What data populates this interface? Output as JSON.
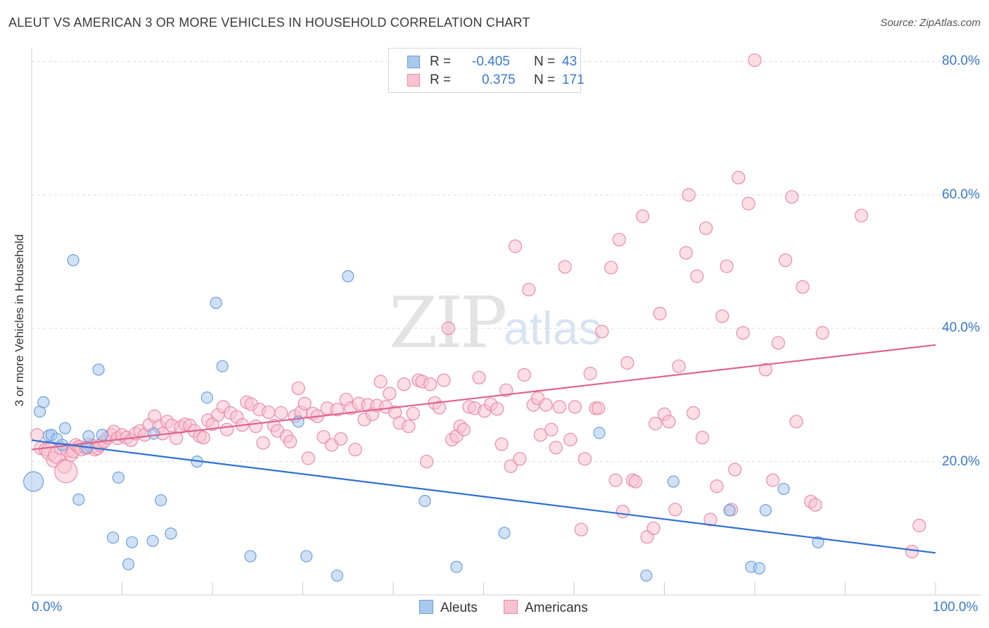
{
  "title": "ALEUT VS AMERICAN 3 OR MORE VEHICLES IN HOUSEHOLD CORRELATION CHART",
  "source": "Source: ZipAtlas.com",
  "watermark": {
    "zip": "ZIP",
    "atlas": "atlas"
  },
  "legend": {
    "rows": [
      {
        "r_label": "R =",
        "r_value": "-0.405",
        "n_label": "N =",
        "n_value": "43",
        "color": "#a9c8ee"
      },
      {
        "r_label": "R =",
        "r_value": "0.375",
        "n_label": "N =",
        "n_value": "171",
        "color": "#f5b9cb"
      }
    ]
  },
  "bottom_legend": {
    "aleuts": "Aleuts",
    "americans": "Americans"
  },
  "colors": {
    "aleut_fill": "#a9c8ee",
    "aleut_stroke": "#6d9fdc",
    "aleut_line": "#2e6fd6",
    "american_fill": "#f7c3d2",
    "american_stroke": "#ea8ba8",
    "american_line": "#e0638e",
    "axis_label": "#3b78cf",
    "grid": "#dddddd"
  },
  "chart_data": {
    "type": "scatter",
    "title": "ALEUT VS AMERICAN 3 OR MORE VEHICLES IN HOUSEHOLD CORRELATION CHART",
    "xlabel": "",
    "ylabel": "3 or more Vehicles in Household",
    "xlim": [
      0,
      100
    ],
    "ylim": [
      0,
      81
    ],
    "x_tick_labels": [
      "0.0%",
      "100.0%"
    ],
    "y_ticks": [
      20,
      40,
      60,
      80
    ],
    "y_tick_labels": [
      "20.0%",
      "40.0%",
      "60.0%",
      "80.0%"
    ],
    "grid": true,
    "legend_position": "top-center",
    "series": [
      {
        "name": "Aleuts",
        "r": -0.405,
        "n": 43,
        "trend": {
          "x": [
            0,
            100
          ],
          "y": [
            23.2,
            6.3
          ]
        },
        "points": [
          [
            0.2,
            17.0,
            14
          ],
          [
            0.9,
            27.5,
            8
          ],
          [
            1.3,
            28.9,
            8
          ],
          [
            1.9,
            23.9,
            8
          ],
          [
            2.2,
            24.0,
            8
          ],
          [
            2.8,
            23.4,
            8
          ],
          [
            3.4,
            22.5,
            8
          ],
          [
            3.7,
            25.0,
            8
          ],
          [
            4.6,
            50.2,
            8
          ],
          [
            5.2,
            14.3,
            8
          ],
          [
            6.1,
            22.1,
            8
          ],
          [
            6.3,
            23.8,
            8
          ],
          [
            7.4,
            33.8,
            8
          ],
          [
            7.8,
            24.0,
            8
          ],
          [
            9.0,
            8.6,
            8
          ],
          [
            9.6,
            17.6,
            8
          ],
          [
            10.7,
            4.6,
            8
          ],
          [
            11.1,
            7.9,
            8
          ],
          [
            13.4,
            8.1,
            8
          ],
          [
            13.5,
            24.2,
            8
          ],
          [
            14.3,
            14.2,
            8
          ],
          [
            15.4,
            9.2,
            8
          ],
          [
            18.3,
            20.0,
            8
          ],
          [
            19.4,
            29.6,
            8
          ],
          [
            20.4,
            43.8,
            8
          ],
          [
            21.1,
            34.3,
            8
          ],
          [
            24.2,
            5.8,
            8
          ],
          [
            29.5,
            26.0,
            8
          ],
          [
            30.4,
            5.8,
            8
          ],
          [
            33.8,
            2.9,
            8
          ],
          [
            35.0,
            47.8,
            8
          ],
          [
            43.5,
            14.1,
            8
          ],
          [
            47.0,
            4.2,
            8
          ],
          [
            52.3,
            9.3,
            8
          ],
          [
            62.8,
            24.3,
            8
          ],
          [
            68.0,
            2.9,
            8
          ],
          [
            71.0,
            17.0,
            8
          ],
          [
            77.2,
            12.7,
            8
          ],
          [
            79.6,
            4.2,
            8
          ],
          [
            80.5,
            4.0,
            8
          ],
          [
            81.2,
            12.7,
            8
          ],
          [
            83.2,
            15.9,
            8
          ],
          [
            87.0,
            7.9,
            8
          ]
        ]
      },
      {
        "name": "Americans",
        "r": 0.375,
        "n": 171,
        "trend": {
          "x": [
            0,
            100
          ],
          "y": [
            21.8,
            37.5
          ]
        },
        "points": [
          [
            0.6,
            24.0,
            9
          ],
          [
            1.0,
            22.0,
            9
          ],
          [
            1.5,
            21.8,
            9
          ],
          [
            2.0,
            21.5,
            12
          ],
          [
            2.5,
            20.3,
            11
          ],
          [
            2.8,
            21.0,
            12
          ],
          [
            3.2,
            22.0,
            9
          ],
          [
            3.6,
            19.3,
            10
          ],
          [
            3.8,
            18.5,
            16
          ],
          [
            4.0,
            21.7,
            10
          ],
          [
            4.4,
            21.0,
            9
          ],
          [
            4.6,
            21.5,
            9
          ],
          [
            4.9,
            22.5,
            9
          ],
          [
            5.2,
            22.2,
            9
          ],
          [
            5.5,
            21.8,
            9
          ],
          [
            6.0,
            22.0,
            9
          ],
          [
            6.3,
            22.6,
            9
          ],
          [
            6.7,
            22.3,
            10
          ],
          [
            7.0,
            21.8,
            9
          ],
          [
            7.3,
            22.0,
            9
          ],
          [
            7.6,
            22.5,
            9
          ],
          [
            8.0,
            23.0,
            9
          ],
          [
            8.4,
            23.6,
            9
          ],
          [
            8.8,
            24.0,
            9
          ],
          [
            9.1,
            24.5,
            9
          ],
          [
            9.5,
            23.5,
            9
          ],
          [
            10.0,
            24.0,
            9
          ],
          [
            10.5,
            23.6,
            9
          ],
          [
            11.0,
            23.2,
            9
          ],
          [
            11.5,
            24.2,
            9
          ],
          [
            12.0,
            24.6,
            9
          ],
          [
            12.5,
            24.0,
            9
          ],
          [
            13.0,
            25.5,
            9
          ],
          [
            13.6,
            26.8,
            9
          ],
          [
            14.1,
            25.3,
            9
          ],
          [
            14.5,
            24.2,
            9
          ],
          [
            15.0,
            26.0,
            9
          ],
          [
            15.5,
            25.4,
            9
          ],
          [
            16.0,
            23.5,
            9
          ],
          [
            16.5,
            25.2,
            9
          ],
          [
            17.0,
            25.6,
            9
          ],
          [
            17.5,
            25.4,
            9
          ],
          [
            18.0,
            24.6,
            9
          ],
          [
            18.6,
            23.8,
            9
          ],
          [
            19.0,
            23.6,
            9
          ],
          [
            19.5,
            26.2,
            9
          ],
          [
            20.0,
            25.6,
            9
          ],
          [
            20.6,
            27.0,
            9
          ],
          [
            21.2,
            28.2,
            9
          ],
          [
            21.6,
            24.8,
            9
          ],
          [
            22.0,
            27.3,
            9
          ],
          [
            22.7,
            26.7,
            9
          ],
          [
            23.3,
            25.5,
            9
          ],
          [
            23.8,
            28.9,
            9
          ],
          [
            24.3,
            28.6,
            9
          ],
          [
            24.8,
            25.3,
            9
          ],
          [
            25.2,
            27.8,
            9
          ],
          [
            25.6,
            22.8,
            9
          ],
          [
            26.2,
            27.4,
            9
          ],
          [
            26.8,
            25.4,
            9
          ],
          [
            27.2,
            24.6,
            9
          ],
          [
            27.6,
            27.3,
            9
          ],
          [
            28.2,
            23.8,
            9
          ],
          [
            28.6,
            23.0,
            9
          ],
          [
            29.1,
            26.8,
            9
          ],
          [
            29.5,
            31.0,
            9
          ],
          [
            29.8,
            27.4,
            9
          ],
          [
            30.2,
            28.7,
            9
          ],
          [
            30.6,
            20.5,
            9
          ],
          [
            31.1,
            27.2,
            9
          ],
          [
            31.6,
            26.8,
            9
          ],
          [
            32.3,
            23.7,
            9
          ],
          [
            32.7,
            28.0,
            9
          ],
          [
            33.2,
            22.5,
            9
          ],
          [
            33.8,
            27.8,
            9
          ],
          [
            34.2,
            23.4,
            9
          ],
          [
            34.8,
            29.3,
            9
          ],
          [
            35.3,
            28.0,
            9
          ],
          [
            35.8,
            21.8,
            9
          ],
          [
            36.2,
            28.7,
            9
          ],
          [
            36.8,
            26.3,
            9
          ],
          [
            37.2,
            28.5,
            9
          ],
          [
            37.7,
            27.1,
            9
          ],
          [
            38.2,
            28.4,
            9
          ],
          [
            38.6,
            32.0,
            9
          ],
          [
            39.2,
            28.2,
            9
          ],
          [
            39.6,
            30.2,
            9
          ],
          [
            40.2,
            27.4,
            9
          ],
          [
            40.7,
            25.8,
            9
          ],
          [
            41.2,
            31.6,
            9
          ],
          [
            41.7,
            25.3,
            9
          ],
          [
            42.2,
            27.2,
            9
          ],
          [
            42.8,
            32.2,
            9
          ],
          [
            43.2,
            32.0,
            9
          ],
          [
            43.7,
            20.0,
            9
          ],
          [
            44.1,
            31.6,
            9
          ],
          [
            44.6,
            28.8,
            9
          ],
          [
            45.1,
            28.1,
            9
          ],
          [
            45.6,
            32.2,
            9
          ],
          [
            46.1,
            40.0,
            9
          ],
          [
            46.5,
            23.3,
            9
          ],
          [
            47.0,
            23.8,
            9
          ],
          [
            47.4,
            25.3,
            9
          ],
          [
            47.8,
            24.8,
            9
          ],
          [
            48.4,
            28.2,
            9
          ],
          [
            49.0,
            28.0,
            9
          ],
          [
            49.5,
            32.6,
            9
          ],
          [
            50.1,
            27.6,
            9
          ],
          [
            50.8,
            28.6,
            9
          ],
          [
            51.5,
            27.9,
            9
          ],
          [
            52.0,
            22.6,
            9
          ],
          [
            52.5,
            30.7,
            9
          ],
          [
            53.0,
            19.3,
            9
          ],
          [
            53.5,
            52.3,
            9
          ],
          [
            54.0,
            20.4,
            9
          ],
          [
            54.5,
            33.0,
            9
          ],
          [
            55.0,
            45.8,
            9
          ],
          [
            55.5,
            28.5,
            9
          ],
          [
            56.0,
            29.5,
            9
          ],
          [
            56.3,
            24.0,
            9
          ],
          [
            56.9,
            28.5,
            9
          ],
          [
            57.5,
            24.8,
            9
          ],
          [
            58.0,
            22.1,
            9
          ],
          [
            58.4,
            28.2,
            9
          ],
          [
            59.0,
            49.2,
            9
          ],
          [
            59.6,
            23.3,
            9
          ],
          [
            60.1,
            28.2,
            9
          ],
          [
            60.8,
            9.8,
            9
          ],
          [
            61.2,
            20.4,
            9
          ],
          [
            61.8,
            33.2,
            9
          ],
          [
            62.4,
            28.0,
            9
          ],
          [
            62.7,
            28.0,
            9
          ],
          [
            63.1,
            39.5,
            9
          ],
          [
            64.1,
            49.1,
            9
          ],
          [
            64.6,
            17.2,
            9
          ],
          [
            65.0,
            53.3,
            9
          ],
          [
            65.4,
            12.5,
            9
          ],
          [
            65.9,
            34.8,
            9
          ],
          [
            66.5,
            17.2,
            9
          ],
          [
            66.8,
            17.0,
            9
          ],
          [
            67.6,
            56.8,
            9
          ],
          [
            68.1,
            8.7,
            9
          ],
          [
            68.8,
            10.0,
            9
          ],
          [
            69.0,
            25.7,
            9
          ],
          [
            69.5,
            42.2,
            9
          ],
          [
            70.0,
            27.1,
            9
          ],
          [
            70.5,
            26.0,
            9
          ],
          [
            71.2,
            12.8,
            9
          ],
          [
            71.6,
            34.3,
            9
          ],
          [
            72.4,
            51.3,
            9
          ],
          [
            72.7,
            60.0,
            9
          ],
          [
            73.2,
            27.3,
            9
          ],
          [
            73.6,
            47.8,
            9
          ],
          [
            74.2,
            23.6,
            9
          ],
          [
            74.6,
            55.0,
            9
          ],
          [
            75.1,
            11.3,
            9
          ],
          [
            75.8,
            16.3,
            9
          ],
          [
            76.4,
            41.8,
            9
          ],
          [
            76.9,
            49.3,
            9
          ],
          [
            77.4,
            12.8,
            9
          ],
          [
            77.8,
            18.8,
            9
          ],
          [
            78.2,
            62.6,
            9
          ],
          [
            78.7,
            39.3,
            9
          ],
          [
            79.3,
            58.7,
            9
          ],
          [
            80.0,
            80.2,
            9
          ],
          [
            81.2,
            33.8,
            9
          ],
          [
            82.0,
            17.2,
            9
          ],
          [
            82.6,
            37.8,
            9
          ],
          [
            83.4,
            50.2,
            9
          ],
          [
            84.1,
            59.7,
            9
          ],
          [
            84.6,
            26.0,
            9
          ],
          [
            85.3,
            46.2,
            9
          ],
          [
            86.2,
            14.0,
            9
          ],
          [
            86.7,
            13.5,
            9
          ],
          [
            87.5,
            39.3,
            9
          ],
          [
            91.8,
            56.9,
            9
          ],
          [
            97.4,
            6.5,
            9
          ],
          [
            98.2,
            10.4,
            9
          ]
        ]
      }
    ]
  }
}
